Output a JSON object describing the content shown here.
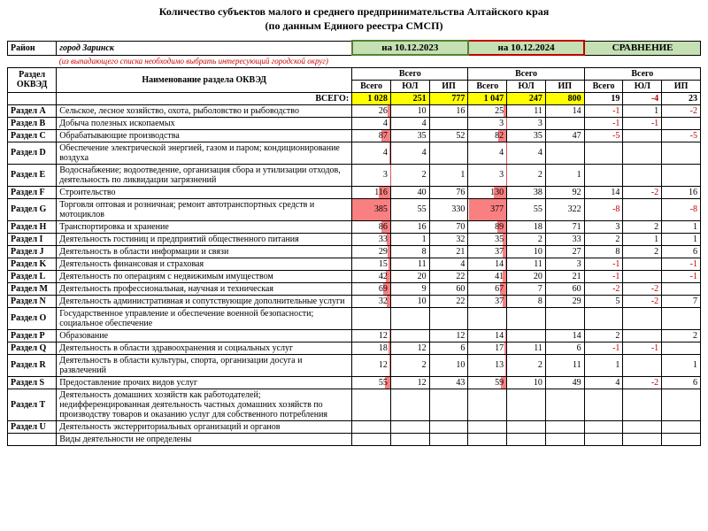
{
  "title_line1": "Количество субъектов малого и среднего предпринимательства Алтайского края",
  "title_line2": "(по данным Единого реестра СМСП)",
  "labels": {
    "district": "Район",
    "district_name": "город Заринск",
    "hint": "(из выпадающего списка необходимо выбрать интересующий городской округ)",
    "section": "Раздел ОКВЭД",
    "section_name": "Наименование раздела ОКВЭД",
    "date1": "на 10.12.2023",
    "date2": "на 10.12.2024",
    "compare": "СРАВНЕНИЕ",
    "total_group": "Всего",
    "col_total": "Всего",
    "col_ul": "ЮЛ",
    "col_ip": "ИП",
    "grand_total": "ВСЕГО:"
  },
  "totals": {
    "p1": {
      "total": "1 028",
      "ul": "251",
      "ip": "777"
    },
    "p2": {
      "total": "1 047",
      "ul": "247",
      "ip": "800"
    },
    "cmp": {
      "total": "19",
      "ul": "-4",
      "ip": "23"
    }
  },
  "max_total": 385,
  "rows": [
    {
      "code": "Раздел A",
      "name": "Сельское, лесное хозяйство, охота, рыболовство и рыбоводство",
      "p1": {
        "t": "26",
        "ul": "10",
        "ip": "16"
      },
      "p2": {
        "t": "25",
        "ul": "11",
        "ip": "14"
      },
      "cmp": {
        "t": "-1",
        "ul": "1",
        "ip": "-2"
      }
    },
    {
      "code": "Раздел B",
      "name": "Добыча полезных ископаемых",
      "p1": {
        "t": "4",
        "ul": "4",
        "ip": ""
      },
      "p2": {
        "t": "3",
        "ul": "3",
        "ip": ""
      },
      "cmp": {
        "t": "-1",
        "ul": "-1",
        "ip": ""
      }
    },
    {
      "code": "Раздел C",
      "name": "Обрабатывающие производства",
      "p1": {
        "t": "87",
        "ul": "35",
        "ip": "52"
      },
      "p2": {
        "t": "82",
        "ul": "35",
        "ip": "47"
      },
      "cmp": {
        "t": "-5",
        "ul": "",
        "ip": "-5"
      }
    },
    {
      "code": "Раздел D",
      "name": "Обеспечение электрической энергией, газом и паром; кондиционирование воздуха",
      "p1": {
        "t": "4",
        "ul": "4",
        "ip": ""
      },
      "p2": {
        "t": "4",
        "ul": "4",
        "ip": ""
      },
      "cmp": {
        "t": "",
        "ul": "",
        "ip": ""
      }
    },
    {
      "code": "Раздел E",
      "name": "Водоснабжение; водоотведение, организация сбора и утилизации отходов, деятельность по ликвидации загрязнений",
      "p1": {
        "t": "3",
        "ul": "2",
        "ip": "1"
      },
      "p2": {
        "t": "3",
        "ul": "2",
        "ip": "1"
      },
      "cmp": {
        "t": "",
        "ul": "",
        "ip": ""
      }
    },
    {
      "code": "Раздел F",
      "name": "Строительство",
      "p1": {
        "t": "116",
        "ul": "40",
        "ip": "76"
      },
      "p2": {
        "t": "130",
        "ul": "38",
        "ip": "92"
      },
      "cmp": {
        "t": "14",
        "ul": "-2",
        "ip": "16"
      }
    },
    {
      "code": "Раздел G",
      "name": "Торговля оптовая и розничная; ремонт автотранспортных средств и мотоциклов",
      "p1": {
        "t": "385",
        "ul": "55",
        "ip": "330"
      },
      "p2": {
        "t": "377",
        "ul": "55",
        "ip": "322"
      },
      "cmp": {
        "t": "-8",
        "ul": "",
        "ip": "-8"
      }
    },
    {
      "code": "Раздел H",
      "name": "Транспортировка и хранение",
      "p1": {
        "t": "86",
        "ul": "16",
        "ip": "70"
      },
      "p2": {
        "t": "89",
        "ul": "18",
        "ip": "71"
      },
      "cmp": {
        "t": "3",
        "ul": "2",
        "ip": "1"
      }
    },
    {
      "code": "Раздел I",
      "name": "Деятельность гостиниц и предприятий общественного питания",
      "p1": {
        "t": "33",
        "ul": "1",
        "ip": "32"
      },
      "p2": {
        "t": "35",
        "ul": "2",
        "ip": "33"
      },
      "cmp": {
        "t": "2",
        "ul": "1",
        "ip": "1"
      }
    },
    {
      "code": "Раздел J",
      "name": "Деятельность в области информации и связи",
      "p1": {
        "t": "29",
        "ul": "8",
        "ip": "21"
      },
      "p2": {
        "t": "37",
        "ul": "10",
        "ip": "27"
      },
      "cmp": {
        "t": "8",
        "ul": "2",
        "ip": "6"
      }
    },
    {
      "code": "Раздел K",
      "name": "Деятельность финансовая и страховая",
      "p1": {
        "t": "15",
        "ul": "11",
        "ip": "4"
      },
      "p2": {
        "t": "14",
        "ul": "11",
        "ip": "3"
      },
      "cmp": {
        "t": "-1",
        "ul": "",
        "ip": "-1"
      }
    },
    {
      "code": "Раздел L",
      "name": "Деятельность по операциям с недвижимым имуществом",
      "p1": {
        "t": "42",
        "ul": "20",
        "ip": "22"
      },
      "p2": {
        "t": "41",
        "ul": "20",
        "ip": "21"
      },
      "cmp": {
        "t": "-1",
        "ul": "",
        "ip": "-1"
      }
    },
    {
      "code": "Раздел M",
      "name": "Деятельность профессиональная, научная и техническая",
      "p1": {
        "t": "69",
        "ul": "9",
        "ip": "60"
      },
      "p2": {
        "t": "67",
        "ul": "7",
        "ip": "60"
      },
      "cmp": {
        "t": "-2",
        "ul": "-2",
        "ip": ""
      }
    },
    {
      "code": "Раздел N",
      "name": "Деятельность административная и сопутствующие дополнительные услуги",
      "p1": {
        "t": "32",
        "ul": "10",
        "ip": "22"
      },
      "p2": {
        "t": "37",
        "ul": "8",
        "ip": "29"
      },
      "cmp": {
        "t": "5",
        "ul": "-2",
        "ip": "7"
      }
    },
    {
      "code": "Раздел O",
      "name": "Государственное управление и обеспечение военной безопасности; социальное обеспечение",
      "p1": {
        "t": "",
        "ul": "",
        "ip": ""
      },
      "p2": {
        "t": "",
        "ul": "",
        "ip": ""
      },
      "cmp": {
        "t": "",
        "ul": "",
        "ip": ""
      }
    },
    {
      "code": "Раздел P",
      "name": "Образование",
      "p1": {
        "t": "12",
        "ul": "",
        "ip": "12"
      },
      "p2": {
        "t": "14",
        "ul": "",
        "ip": "14"
      },
      "cmp": {
        "t": "2",
        "ul": "",
        "ip": "2"
      }
    },
    {
      "code": "Раздел Q",
      "name": "Деятельность в области здравоохранения и социальных услуг",
      "p1": {
        "t": "18",
        "ul": "12",
        "ip": "6"
      },
      "p2": {
        "t": "17",
        "ul": "11",
        "ip": "6"
      },
      "cmp": {
        "t": "-1",
        "ul": "-1",
        "ip": ""
      }
    },
    {
      "code": "Раздел R",
      "name": "Деятельность в области культуры, спорта, организации досуга и развлечений",
      "p1": {
        "t": "12",
        "ul": "2",
        "ip": "10"
      },
      "p2": {
        "t": "13",
        "ul": "2",
        "ip": "11"
      },
      "cmp": {
        "t": "1",
        "ul": "",
        "ip": "1"
      }
    },
    {
      "code": "Раздел S",
      "name": "Предоставление прочих видов услуг",
      "p1": {
        "t": "55",
        "ul": "12",
        "ip": "43"
      },
      "p2": {
        "t": "59",
        "ul": "10",
        "ip": "49"
      },
      "cmp": {
        "t": "4",
        "ul": "-2",
        "ip": "6"
      }
    },
    {
      "code": "Раздел T",
      "name": "Деятельность домашних хозяйств как работодателей; недифференцированная деятельность частных домашних хозяйств по производству товаров и оказанию услуг для собственного потребления",
      "p1": {
        "t": "",
        "ul": "",
        "ip": ""
      },
      "p2": {
        "t": "",
        "ul": "",
        "ip": ""
      },
      "cmp": {
        "t": "",
        "ul": "",
        "ip": ""
      }
    },
    {
      "code": "Раздел U",
      "name": "Деятельность экстерриториальных организаций и органов",
      "p1": {
        "t": "",
        "ul": "",
        "ip": ""
      },
      "p2": {
        "t": "",
        "ul": "",
        "ip": ""
      },
      "cmp": {
        "t": "",
        "ul": "",
        "ip": ""
      }
    },
    {
      "code": "",
      "name": "Виды деятельности не определены",
      "p1": {
        "t": "",
        "ul": "",
        "ip": ""
      },
      "p2": {
        "t": "",
        "ul": "",
        "ip": ""
      },
      "cmp": {
        "t": "",
        "ul": "",
        "ip": ""
      }
    }
  ]
}
